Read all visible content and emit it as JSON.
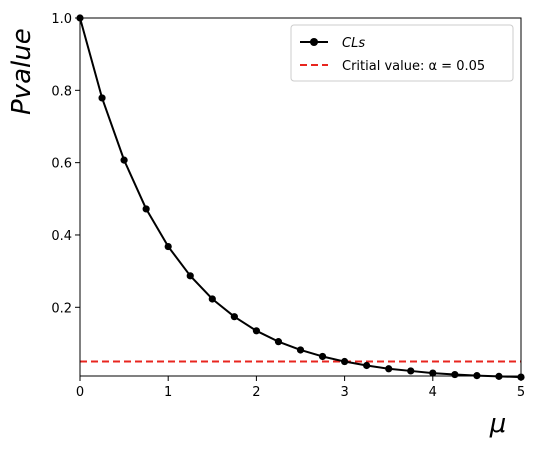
{
  "chart_data": {
    "type": "line",
    "xlabel": "μ",
    "ylabel": "Pvalue",
    "xlim": [
      0,
      5
    ],
    "ylim": [
      0.01,
      1.0
    ],
    "x_ticks": [
      "0",
      "1",
      "2",
      "3",
      "4",
      "5"
    ],
    "y_ticks": [
      "0.2",
      "0.4",
      "0.6",
      "0.8",
      "1.0"
    ],
    "grid": false,
    "legend_position": "top-right",
    "series": [
      {
        "name": "CLs",
        "color": "#000000",
        "marker": "circle",
        "x": [
          0,
          0.25,
          0.5,
          0.75,
          1.0,
          1.25,
          1.5,
          1.75,
          2.0,
          2.25,
          2.5,
          2.75,
          3.0,
          3.25,
          3.5,
          3.75,
          4.0,
          4.25,
          4.5,
          4.75,
          5.0
        ],
        "y": [
          1.0,
          0.779,
          0.607,
          0.472,
          0.368,
          0.287,
          0.223,
          0.174,
          0.135,
          0.105,
          0.082,
          0.064,
          0.05,
          0.039,
          0.03,
          0.024,
          0.018,
          0.014,
          0.011,
          0.009,
          0.007
        ]
      }
    ],
    "reference_line": {
      "label": "Critial value: α = 0.05",
      "y": 0.05,
      "color": "#e8251f",
      "style": "dashed"
    }
  }
}
